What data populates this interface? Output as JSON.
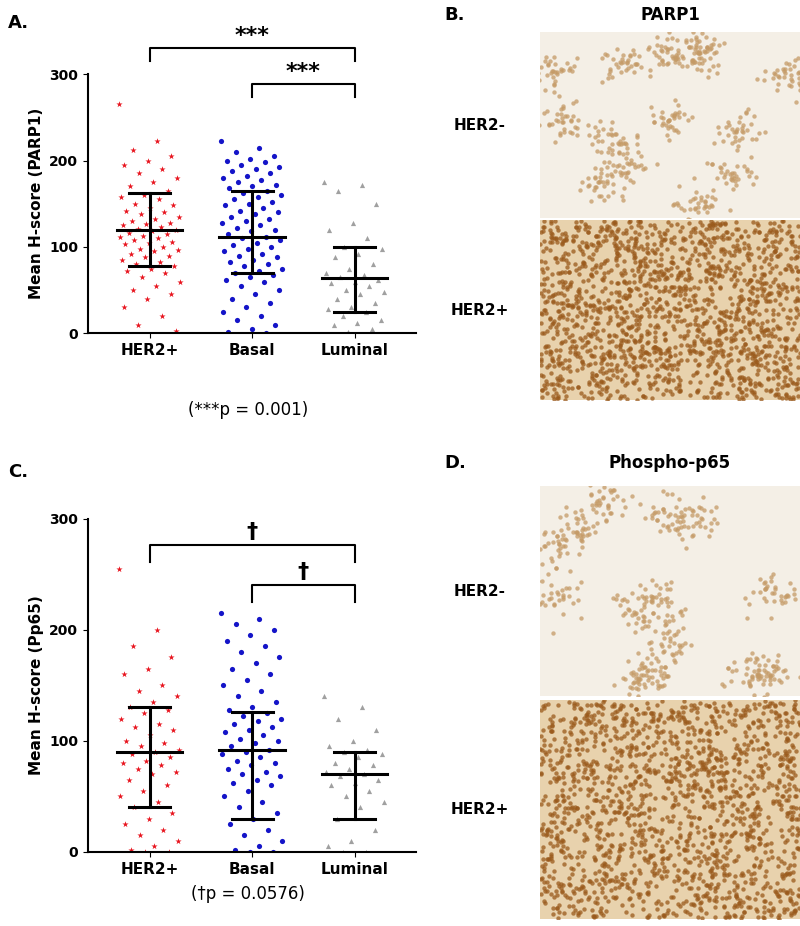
{
  "chart_data": [
    {
      "panel": "A.",
      "type": "scatter",
      "y_label": "Mean H-score (PARP1)",
      "ylim": [
        0,
        300
      ],
      "yticks": [
        0,
        100,
        200,
        300
      ],
      "categories": [
        "HER2+",
        "Basal",
        "Luminal"
      ],
      "groups": [
        {
          "color": "#e8141e",
          "marker": "star",
          "mean": 120,
          "sd": [
            78,
            162
          ],
          "values": [
            265,
            222,
            212,
            205,
            200,
            195,
            190,
            185,
            180,
            175,
            170,
            165,
            160,
            158,
            155,
            150,
            148,
            145,
            142,
            140,
            138,
            135,
            132,
            130,
            128,
            126,
            125,
            123,
            121,
            120,
            118,
            116,
            115,
            113,
            112,
            110,
            108,
            106,
            105,
            103,
            100,
            98,
            96,
            95,
            92,
            90,
            88,
            85,
            82,
            80,
            78,
            75,
            72,
            70,
            65,
            60,
            55,
            50,
            45,
            40,
            30,
            20,
            10,
            3
          ]
        },
        {
          "color": "#1414c8",
          "marker": "circle",
          "mean": 112,
          "sd": [
            70,
            165
          ],
          "values": [
            222,
            215,
            210,
            205,
            202,
            200,
            198,
            195,
            192,
            190,
            188,
            185,
            182,
            180,
            178,
            175,
            172,
            170,
            168,
            165,
            162,
            160,
            158,
            155,
            152,
            150,
            148,
            145,
            142,
            140,
            138,
            135,
            132,
            130,
            128,
            125,
            122,
            120,
            118,
            115,
            112,
            110,
            108,
            105,
            102,
            100,
            98,
            95,
            92,
            90,
            88,
            85,
            82,
            80,
            78,
            75,
            72,
            70,
            68,
            65,
            62,
            60,
            55,
            50,
            45,
            40,
            35,
            30,
            25,
            20,
            15,
            10,
            5,
            2,
            0
          ]
        },
        {
          "color": "#a0a0a0",
          "marker": "triangle",
          "mean": 64,
          "sd": [
            25,
            100
          ],
          "values": [
            175,
            172,
            165,
            150,
            128,
            120,
            110,
            100,
            98,
            92,
            88,
            80,
            75,
            70,
            68,
            65,
            62,
            60,
            58,
            55,
            50,
            48,
            45,
            40,
            35,
            30,
            28,
            25,
            20,
            15,
            12,
            10,
            5,
            2
          ]
        }
      ],
      "brackets": [
        {
          "from": "HER2+",
          "to": "Luminal",
          "label": "***"
        },
        {
          "from": "Basal",
          "to": "Luminal",
          "label": "***"
        }
      ],
      "footnote": "(***p = 0.001)"
    },
    {
      "panel": "C.",
      "type": "scatter",
      "y_label": "Mean H-score (Pp65)",
      "ylim": [
        0,
        300
      ],
      "yticks": [
        0,
        100,
        200,
        300
      ],
      "categories": [
        "HER2+",
        "Basal",
        "Luminal"
      ],
      "groups": [
        {
          "color": "#e8141e",
          "marker": "star",
          "mean": 90,
          "sd": [
            40,
            130
          ],
          "values": [
            255,
            200,
            185,
            175,
            165,
            160,
            150,
            145,
            140,
            135,
            130,
            128,
            125,
            120,
            115,
            112,
            110,
            105,
            100,
            98,
            95,
            92,
            90,
            88,
            85,
            82,
            80,
            78,
            75,
            72,
            70,
            65,
            60,
            55,
            50,
            45,
            40,
            35,
            30,
            25,
            20,
            15,
            10,
            5,
            2,
            0,
            0
          ]
        },
        {
          "color": "#1414c8",
          "marker": "circle",
          "mean": 92,
          "sd": [
            30,
            126
          ],
          "values": [
            215,
            210,
            205,
            200,
            195,
            190,
            185,
            180,
            175,
            170,
            165,
            160,
            155,
            150,
            145,
            140,
            135,
            130,
            128,
            125,
            122,
            120,
            118,
            115,
            112,
            110,
            108,
            105,
            102,
            100,
            98,
            95,
            92,
            90,
            88,
            85,
            82,
            80,
            78,
            75,
            72,
            70,
            68,
            65,
            62,
            60,
            55,
            50,
            45,
            40,
            35,
            30,
            25,
            20,
            15,
            10,
            5,
            2,
            0,
            0
          ]
        },
        {
          "color": "#a0a0a0",
          "marker": "triangle",
          "mean": 70,
          "sd": [
            30,
            90
          ],
          "values": [
            140,
            130,
            120,
            110,
            100,
            95,
            92,
            90,
            88,
            85,
            80,
            78,
            75,
            72,
            70,
            68,
            65,
            62,
            60,
            55,
            50,
            45,
            40,
            30,
            20,
            10,
            5,
            0,
            0
          ]
        }
      ],
      "brackets": [
        {
          "from": "HER2+",
          "to": "Luminal",
          "label": "†"
        },
        {
          "from": "Basal",
          "to": "Luminal",
          "label": "†"
        }
      ],
      "footnote": "(†p = 0.0576)"
    }
  ],
  "images": [
    {
      "panel": "B.",
      "title": "PARP1",
      "rows": [
        "HER2-",
        "HER2+"
      ]
    },
    {
      "panel": "D.",
      "title": "Phospho-p65",
      "rows": [
        "HER2-",
        "HER2+"
      ]
    }
  ]
}
